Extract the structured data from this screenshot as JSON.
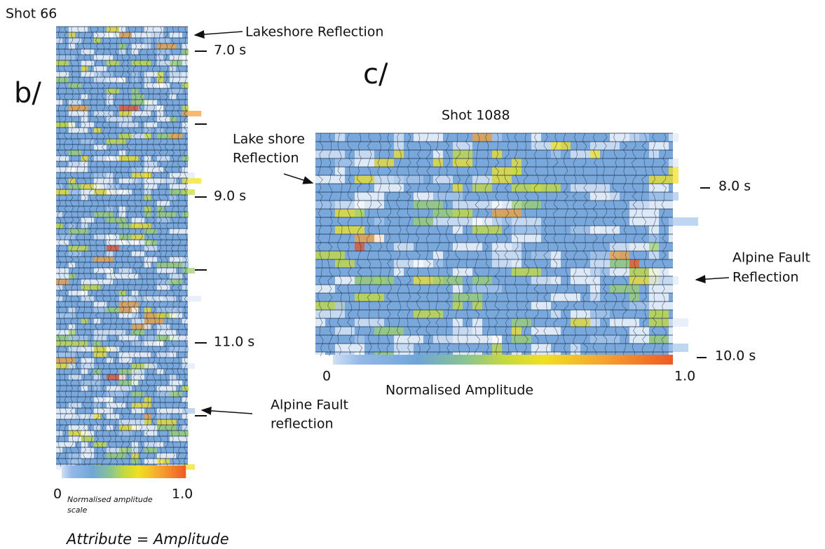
{
  "panel_b": {
    "title": "Shot 66",
    "label": "b/",
    "time_labels": [
      "7.0 s",
      "9.0 s",
      "11.0 s"
    ],
    "lakeshore_annotation": "Lakeshore Reflection",
    "alpine_annotation": [
      "Alpine Fault",
      "reflection"
    ],
    "scale": {
      "min": "0",
      "max": "1.0",
      "caption": [
        "Normalised amplitude",
        "scale"
      ]
    }
  },
  "panel_c": {
    "title": "Shot 1088",
    "label": "c/",
    "time_labels": [
      "8.0 s",
      "10.0 s"
    ],
    "lakeshore_annotation": [
      "Lake shore",
      "Reflection"
    ],
    "alpine_annotation": [
      "Alpine Fault",
      "Reflection"
    ],
    "scale": {
      "min": "0",
      "max": "1.0",
      "caption": "Normalised Amplitude"
    }
  },
  "footer": "Attribute = Amplitude"
}
